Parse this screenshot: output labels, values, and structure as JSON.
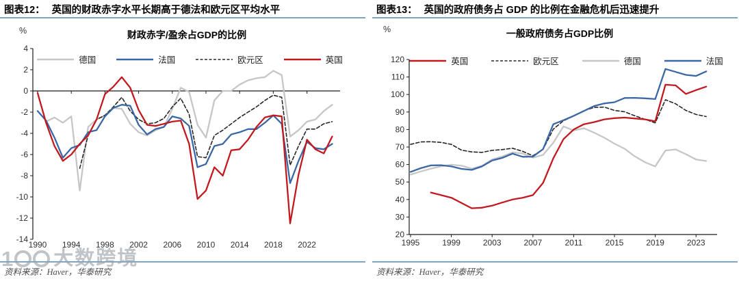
{
  "page": {
    "watermark_text": "大数跨境",
    "rule_color": "#7da4c3"
  },
  "chart_data": [
    {
      "type": "line",
      "figure_label": "图表12：",
      "figure_title": "英国的财政赤字水平长期高于德法和欧元区平均水平",
      "title": "财政赤字/盈余占GDP的比例",
      "unit": "%",
      "xticks": [
        1990,
        1994,
        1998,
        2002,
        2006,
        2010,
        2014,
        2018,
        2022
      ],
      "ylim": [
        -14,
        4
      ],
      "ytick_step": 2,
      "grid": false,
      "legend_position": "top",
      "source": "资料来源：Haver，华泰研究",
      "series": [
        {
          "name": "德国",
          "color": "#c6c6c6",
          "dash": "none",
          "start_year": 1991,
          "values": [
            -2.9,
            -2.5,
            -3.0,
            -2.4,
            -9.4,
            -3.4,
            -2.7,
            -2.3,
            -1.6,
            -1.7,
            -3.1,
            -3.9,
            -4.2,
            -3.7,
            -3.4,
            -1.7,
            0.3,
            -0.1,
            -3.2,
            -4.4,
            -0.9,
            0.0,
            0.0,
            0.6,
            1.0,
            1.2,
            1.3,
            1.9,
            1.5,
            -4.3,
            -3.7,
            -2.9,
            -2.7,
            -1.9,
            -1.3
          ]
        },
        {
          "name": "法国",
          "color": "#3a67a5",
          "dash": "none",
          "start_year": 1990,
          "values": [
            -1.9,
            -2.8,
            -4.4,
            -6.3,
            -5.4,
            -5.1,
            -3.9,
            -3.7,
            -2.4,
            -1.6,
            -1.3,
            -1.4,
            -3.2,
            -4.1,
            -3.6,
            -3.4,
            -2.4,
            -2.6,
            -3.3,
            -7.2,
            -6.9,
            -5.2,
            -5.0,
            -4.1,
            -3.9,
            -3.6,
            -3.6,
            -3.0,
            -2.3,
            -3.1,
            -8.7,
            -6.6,
            -4.8,
            -5.4,
            -5.5,
            -5.0
          ]
        },
        {
          "name": "欧元区",
          "color": "#262626",
          "dash": "5 3",
          "start_year": 1995,
          "values": [
            -7.3,
            -4.2,
            -2.7,
            -2.3,
            -1.5,
            -0.6,
            -1.9,
            -2.7,
            -3.1,
            -3.0,
            -2.6,
            -1.5,
            -0.7,
            -2.2,
            -6.2,
            -6.3,
            -4.2,
            -3.7,
            -3.1,
            -2.5,
            -2.0,
            -1.5,
            -0.9,
            -0.4,
            -0.6,
            -7.0,
            -5.2,
            -3.6,
            -3.6,
            -3.1,
            -2.9
          ]
        },
        {
          "name": "英国",
          "color": "#c2191f",
          "dash": "none",
          "start_year": 1990,
          "values": [
            -0.2,
            -3.0,
            -5.2,
            -6.6,
            -6.0,
            -5.0,
            -4.2,
            -2.7,
            -0.3,
            0.4,
            1.3,
            0.3,
            -1.8,
            -3.2,
            -3.3,
            -3.1,
            -2.9,
            -2.8,
            -5.0,
            -10.2,
            -9.4,
            -7.2,
            -8.0,
            -5.6,
            -5.5,
            -4.6,
            -3.4,
            -2.5,
            -2.3,
            -2.4,
            -12.5,
            -7.9,
            -4.6,
            -5.5,
            -5.9,
            -4.3
          ]
        }
      ]
    },
    {
      "type": "line",
      "figure_label": "图表13：",
      "figure_title": "英国的政府债务占 GDP 的比例在金融危机后迅速提升",
      "title": "一般政府债务占GDP比例",
      "unit": "%",
      "xticks": [
        1995,
        1999,
        2003,
        2007,
        2011,
        2015,
        2019,
        2023
      ],
      "ylim": [
        20,
        120
      ],
      "ytick_step": 10,
      "grid": false,
      "legend_position": "top",
      "source": "资料来源：Haver，华泰研究",
      "series": [
        {
          "name": "英国",
          "color": "#c2191f",
          "dash": "none",
          "start_year": 1997,
          "values": [
            44.0,
            42.5,
            41.0,
            38.0,
            35.0,
            35.3,
            36.5,
            38.3,
            40.0,
            41.0,
            42.5,
            49.5,
            63.5,
            74.5,
            80.0,
            83.0,
            84.2,
            85.8,
            86.5,
            86.8,
            86.3,
            85.8,
            84.7,
            105.6,
            105.2,
            100.3,
            102.5,
            104.5
          ]
        },
        {
          "name": "欧元区",
          "color": "#262626",
          "dash": "5 3",
          "start_year": 1995,
          "values": [
            71.5,
            72.9,
            73.0,
            72.6,
            71.5,
            68.2,
            67.2,
            66.9,
            68.1,
            68.5,
            69.3,
            67.5,
            65.0,
            68.7,
            80.2,
            85.0,
            87.7,
            90.7,
            92.6,
            92.8,
            90.9,
            90.1,
            87.8,
            85.8,
            83.8,
            97.0,
            94.7,
            90.9,
            88.6,
            87.4
          ]
        },
        {
          "name": "德国",
          "color": "#c6c6c6",
          "dash": "none",
          "start_year": 1995,
          "values": [
            54.2,
            56.0,
            57.6,
            59.0,
            59.9,
            59.3,
            57.6,
            59.2,
            62.9,
            64.6,
            66.9,
            66.3,
            63.9,
            65.5,
            72.4,
            81.8,
            79.4,
            80.7,
            78.2,
            75.3,
            71.9,
            69.0,
            64.6,
            61.3,
            58.9,
            68.0,
            68.6,
            65.9,
            62.9,
            62.0
          ]
        },
        {
          "name": "法国",
          "color": "#3a67a5",
          "dash": "none",
          "start_year": 1995,
          "values": [
            55.8,
            57.9,
            59.5,
            59.6,
            58.9,
            57.5,
            56.9,
            58.9,
            62.3,
            63.8,
            66.2,
            64.4,
            64.5,
            68.8,
            83.0,
            85.3,
            87.8,
            90.6,
            93.4,
            94.9,
            95.6,
            98.0,
            98.1,
            97.8,
            97.4,
            114.6,
            112.9,
            111.2,
            110.6,
            113.2
          ]
        }
      ]
    }
  ]
}
